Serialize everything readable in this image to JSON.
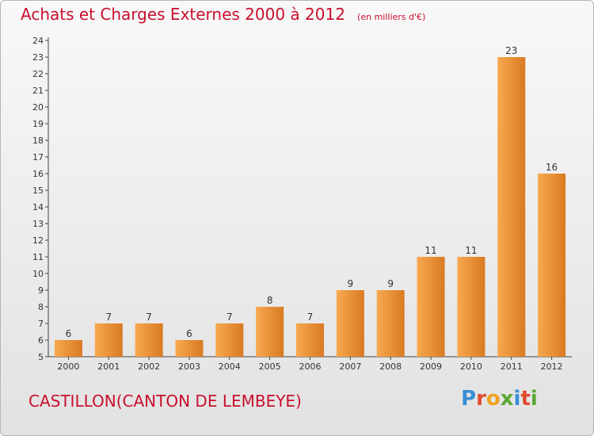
{
  "header": {
    "title": "Achats et Charges Externes 2000 à 2012",
    "subtitle": "(en milliers d'€)"
  },
  "footer": {
    "commune": "CASTILLON(CANTON DE LEMBEYE)",
    "logo": "Proxiti"
  },
  "colors": {
    "title": "#c8102e",
    "bar_light": "#f7a94f",
    "bar_dark": "#d97a22",
    "logo_letters": [
      "#3a8fd6",
      "#e04b2d",
      "#f0a020",
      "#5aa832",
      "#3a8fd6",
      "#e04b2d",
      "#5aa832"
    ]
  },
  "chart_data": {
    "type": "bar",
    "categories": [
      "2000",
      "2001",
      "2002",
      "2003",
      "2004",
      "2005",
      "2006",
      "2007",
      "2008",
      "2009",
      "2010",
      "2011",
      "2012"
    ],
    "values": [
      6,
      7,
      7,
      6,
      7,
      8,
      7,
      9,
      9,
      11,
      11,
      23,
      16
    ],
    "yticks": [
      "5",
      "6",
      "7",
      "8",
      "9",
      "10",
      "11",
      "12",
      "13",
      "14",
      "15",
      "16",
      "17",
      "18",
      "19",
      "20",
      "21",
      "22",
      "23",
      "24"
    ],
    "ylim": [
      5,
      24
    ],
    "grid": false
  }
}
